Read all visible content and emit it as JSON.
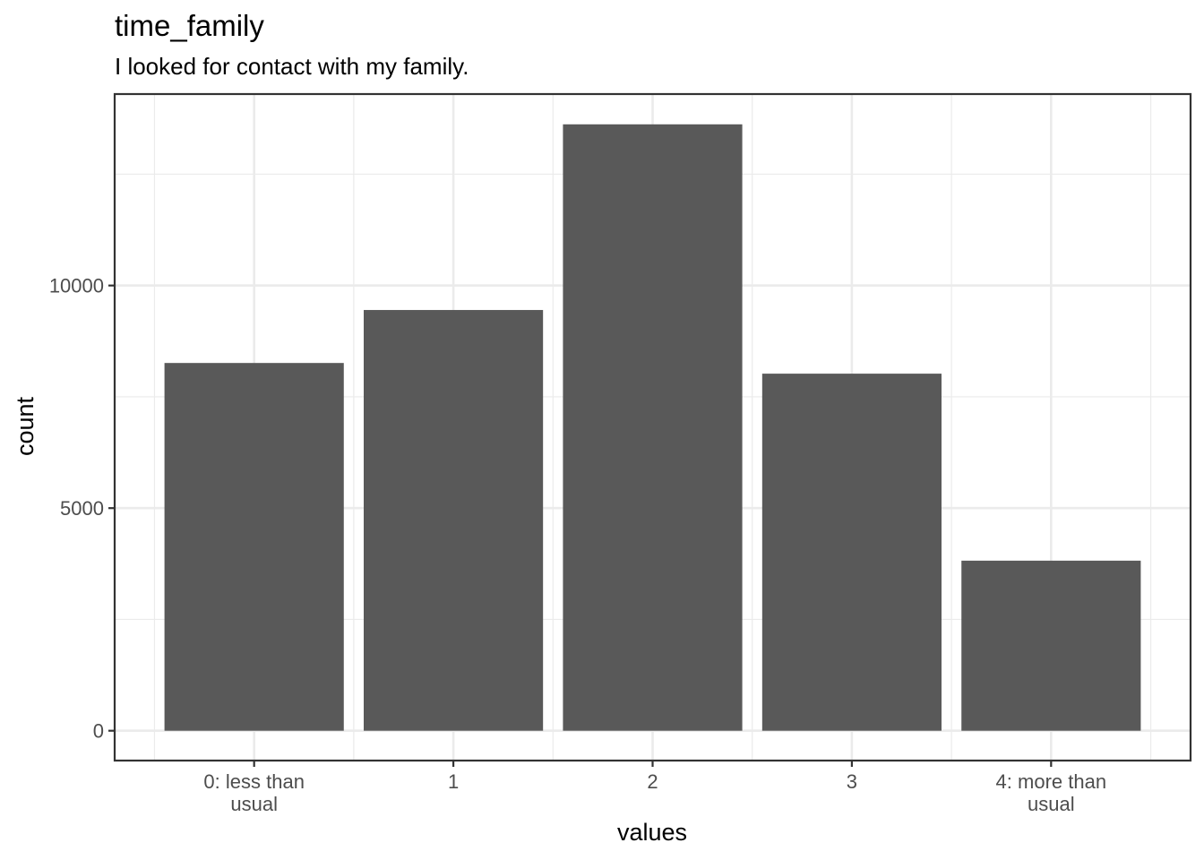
{
  "chart_data": {
    "type": "bar",
    "title": "time_family",
    "subtitle": "I looked for contact with my family.",
    "xlabel": "values",
    "ylabel": "count",
    "categories": [
      [
        "0: less than",
        "usual"
      ],
      [
        "1"
      ],
      [
        "2"
      ],
      [
        "3"
      ],
      [
        "4: more than",
        "usual"
      ]
    ],
    "values": [
      8260,
      9450,
      13620,
      8020,
      3820
    ],
    "ylim": [
      -670,
      14300
    ],
    "yticks": [
      0,
      5000,
      10000
    ],
    "ytick_labels": [
      "0",
      "5000",
      "10000"
    ],
    "yminor": [
      2500,
      7500,
      12500
    ],
    "bar_color": "#595959",
    "grid": true,
    "legend": "none"
  }
}
